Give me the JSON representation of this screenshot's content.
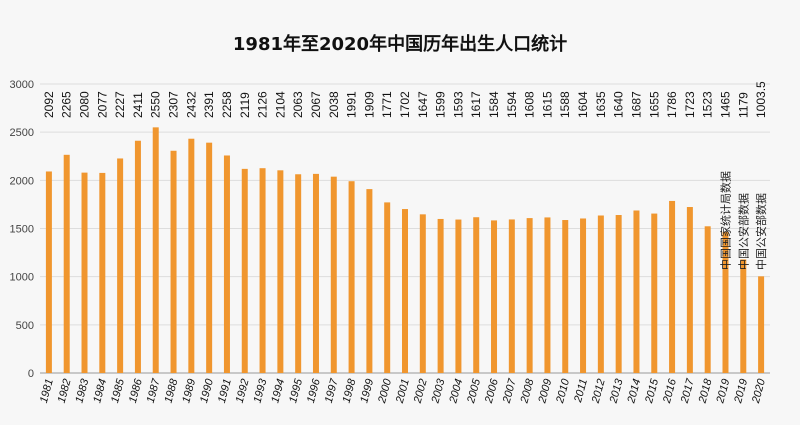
{
  "chart_data": {
    "type": "bar",
    "title": "1981年至2020年中国历年出生人口统计",
    "xlabel": "",
    "ylabel": "",
    "ylim": [
      0,
      3000
    ],
    "yticks": [
      0,
      500,
      1000,
      1500,
      2000,
      2500,
      3000
    ],
    "grid": true,
    "bar_color": "#f0962e",
    "categories": [
      "1981",
      "1982",
      "1983",
      "1984",
      "1985",
      "1986",
      "1987",
      "1988",
      "1989",
      "1990",
      "1991",
      "1992",
      "1993",
      "1994",
      "1995",
      "1996",
      "1997",
      "1998",
      "1999",
      "2000",
      "2001",
      "2002",
      "2003",
      "2004",
      "2005",
      "2006",
      "2007",
      "2008",
      "2009",
      "2010",
      "2011",
      "2012",
      "2013",
      "2014",
      "2015",
      "2016",
      "2017",
      "2018",
      "2019",
      "2019",
      "2020"
    ],
    "values": [
      2092,
      2265,
      2080,
      2077,
      2227,
      2411,
      2550,
      2307,
      2432,
      2391,
      2258,
      2119,
      2126,
      2104,
      2063,
      2067,
      2038,
      1991,
      1909,
      1771,
      1702,
      1647,
      1599,
      1593,
      1617,
      1584,
      1594,
      1608,
      1615,
      1588,
      1604,
      1635,
      1640,
      1687,
      1655,
      1786,
      1723,
      1523,
      1465,
      1179,
      1003.5
    ],
    "value_labels": [
      "2092",
      "2265",
      "2080",
      "2077",
      "2227",
      "2411",
      "2550",
      "2307",
      "2432",
      "2391",
      "2258",
      "2119",
      "2126",
      "2104",
      "2063",
      "2067",
      "2038",
      "1991",
      "1909",
      "1771",
      "1702",
      "1647",
      "1599",
      "1593",
      "1617",
      "1584",
      "1594",
      "1608",
      "1615",
      "1588",
      "1604",
      "1635",
      "1640",
      "1687",
      "1655",
      "1786",
      "1723",
      "1523",
      "1465",
      "1179",
      "1003.5"
    ],
    "annotations": [
      "中国国家统计局数据",
      "中国公安部数据",
      "中国公安部数据"
    ]
  }
}
